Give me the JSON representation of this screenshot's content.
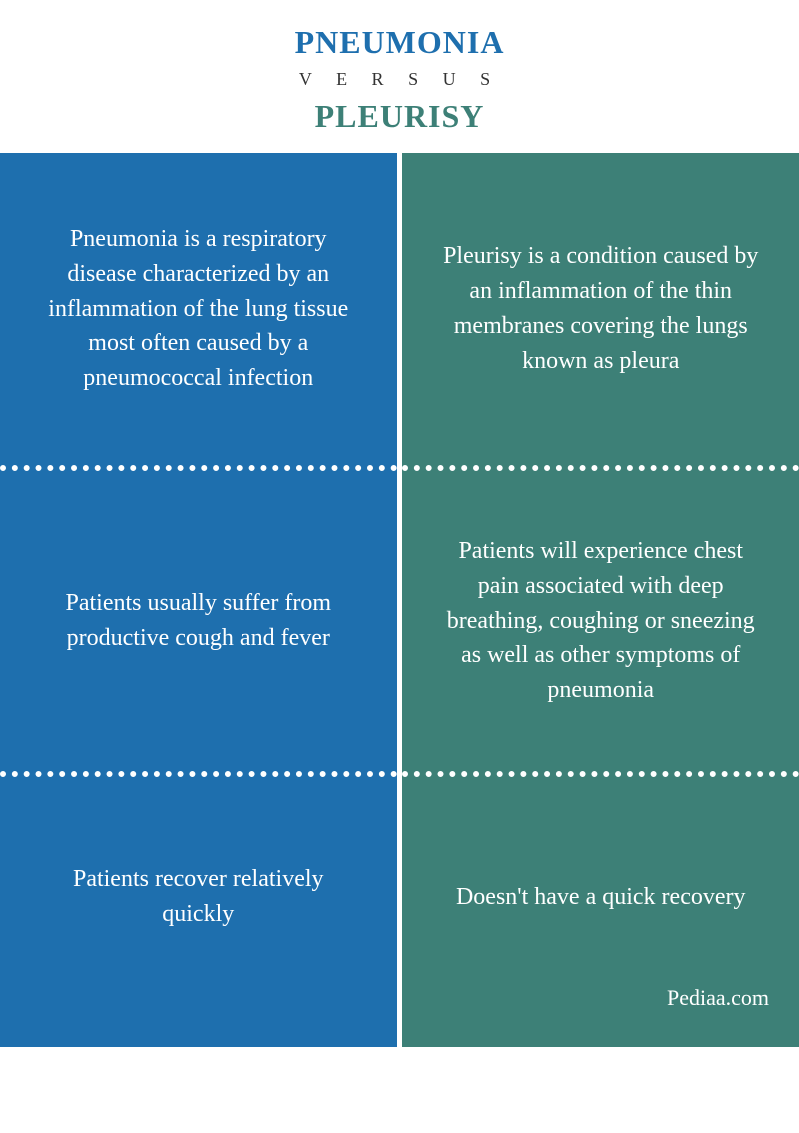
{
  "header": {
    "title_top": "PNEUMONIA",
    "versus": "V E R S U S",
    "title_bottom": "PLEURISY",
    "color_top": "#1e6fae",
    "color_bottom": "#3d8077"
  },
  "columns": {
    "left": {
      "background": "#1e6fae",
      "cells": [
        "Pneumonia is a respiratory disease characterized by an inflammation of the lung tissue most often caused by a pneumococcal infection",
        "Patients usually suffer from productive cough and fever",
        "Patients recover relatively quickly"
      ]
    },
    "right": {
      "background": "#3d8077",
      "cells": [
        "Pleurisy is a condition caused by an inflammation of the thin membranes covering the lungs known as pleura",
        "Patients will experience chest pain associated with deep breathing, coughing or sneezing as well as other symptoms of pneumonia",
        "Doesn't have a quick recovery"
      ]
    }
  },
  "footer": {
    "text": "Pediaa.com"
  },
  "style": {
    "body_width": 799,
    "body_height": 1133,
    "cell_font_size": 24,
    "title_font_size": 32,
    "versus_font_size": 18,
    "divider_color": "#ffffff",
    "text_color": "#ffffff",
    "gap_width": 6
  }
}
